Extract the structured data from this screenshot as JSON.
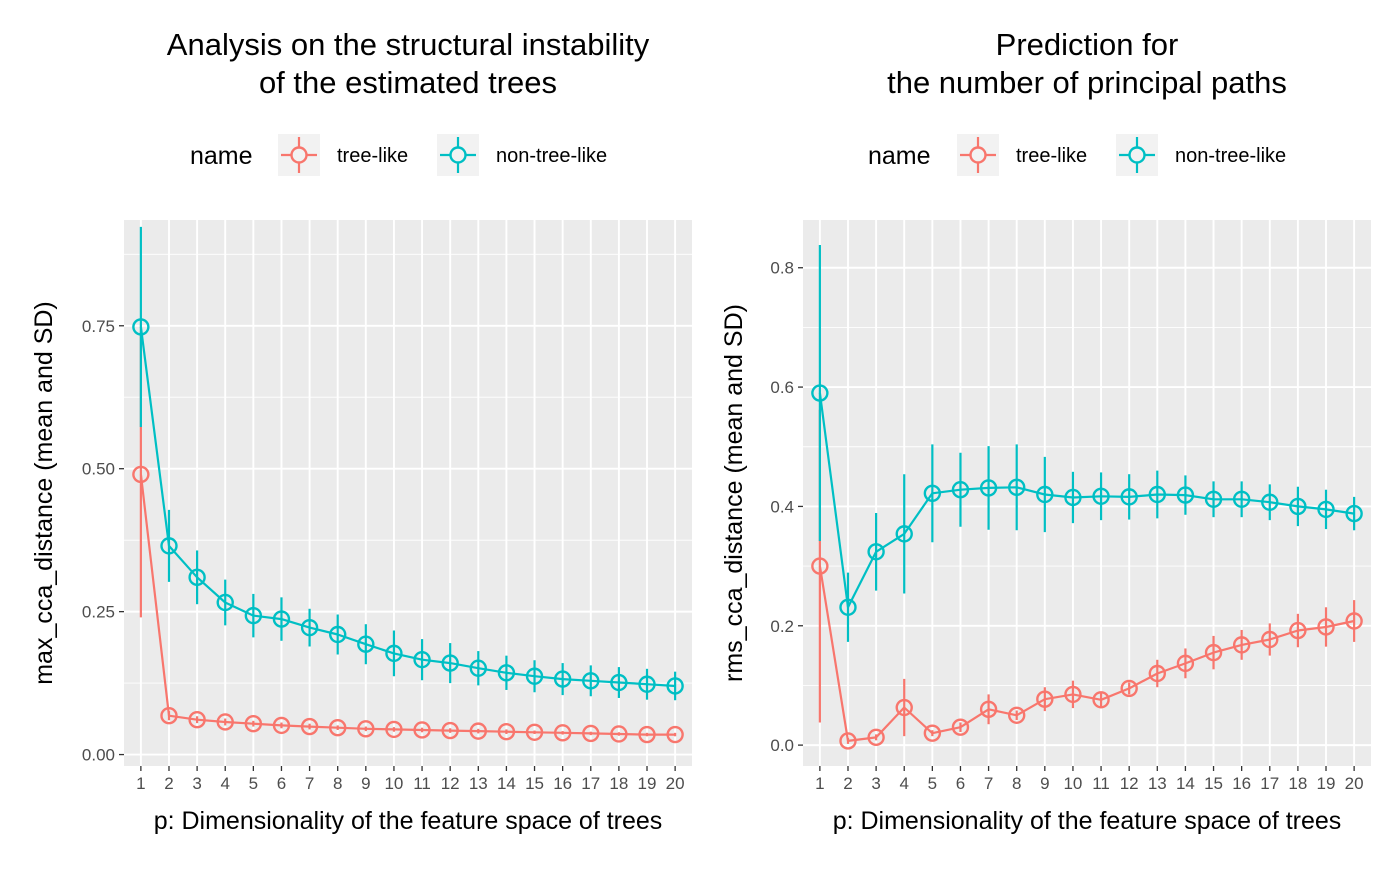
{
  "legend_title": "name",
  "chart_data": [
    {
      "type": "line",
      "title": [
        "Analysis on the structural instability",
        "of the estimated trees"
      ],
      "xlabel": "p: Dimensionality of the feature space of trees",
      "ylabel": "max_cca_distance (mean and SD)",
      "x": [
        1,
        2,
        3,
        4,
        5,
        6,
        7,
        8,
        9,
        10,
        11,
        12,
        13,
        14,
        15,
        16,
        17,
        18,
        19,
        20
      ],
      "ylim": [
        -0.02,
        0.935
      ],
      "yticks": [
        0.0,
        0.25,
        0.5,
        0.75
      ],
      "ytick_labels": [
        "0.00",
        "0.25",
        "0.50",
        "0.75"
      ],
      "grid": true,
      "legend_position": "top",
      "series": [
        {
          "name": "tree-like",
          "color": "#F8766D",
          "values": [
            0.49,
            0.068,
            0.061,
            0.057,
            0.054,
            0.051,
            0.049,
            0.047,
            0.045,
            0.044,
            0.043,
            0.042,
            0.041,
            0.04,
            0.039,
            0.038,
            0.037,
            0.036,
            0.035,
            0.035
          ],
          "sd": [
            0.25,
            0.008,
            0.006,
            0.006,
            0.005,
            0.005,
            0.005,
            0.004,
            0.004,
            0.004,
            0.004,
            0.004,
            0.004,
            0.004,
            0.003,
            0.003,
            0.003,
            0.003,
            0.003,
            0.003
          ]
        },
        {
          "name": "non-tree-like",
          "color": "#00BFC4",
          "values": [
            0.748,
            0.365,
            0.31,
            0.266,
            0.243,
            0.237,
            0.222,
            0.21,
            0.193,
            0.177,
            0.166,
            0.16,
            0.151,
            0.143,
            0.137,
            0.132,
            0.129,
            0.126,
            0.123,
            0.12
          ],
          "sd": [
            0.175,
            0.063,
            0.047,
            0.04,
            0.038,
            0.038,
            0.033,
            0.035,
            0.035,
            0.04,
            0.036,
            0.035,
            0.03,
            0.03,
            0.028,
            0.028,
            0.027,
            0.027,
            0.027,
            0.025
          ]
        }
      ]
    },
    {
      "type": "line",
      "title": [
        "Prediction for",
        "the number of principal paths"
      ],
      "xlabel": "p: Dimensionality of the feature space of trees",
      "ylabel": "rms_cca_distance (mean and SD)",
      "x": [
        1,
        2,
        3,
        4,
        5,
        6,
        7,
        8,
        9,
        10,
        11,
        12,
        13,
        14,
        15,
        16,
        17,
        18,
        19,
        20
      ],
      "ylim": [
        -0.035,
        0.88
      ],
      "yticks": [
        0.0,
        0.2,
        0.4,
        0.6,
        0.8
      ],
      "ytick_labels": [
        "0.0",
        "0.2",
        "0.4",
        "0.6",
        "0.8"
      ],
      "grid": true,
      "legend_position": "top",
      "series": [
        {
          "name": "tree-like",
          "color": "#F8766D",
          "values": [
            0.3,
            0.007,
            0.013,
            0.063,
            0.02,
            0.03,
            0.06,
            0.05,
            0.077,
            0.085,
            0.076,
            0.095,
            0.12,
            0.137,
            0.155,
            0.168,
            0.177,
            0.192,
            0.198,
            0.208
          ],
          "sd": [
            0.262,
            0.005,
            0.005,
            0.048,
            0.005,
            0.008,
            0.025,
            0.008,
            0.02,
            0.023,
            0.013,
            0.01,
            0.023,
            0.025,
            0.028,
            0.025,
            0.027,
            0.028,
            0.033,
            0.035
          ]
        },
        {
          "name": "non-tree-like",
          "color": "#00BFC4",
          "values": [
            0.59,
            0.231,
            0.324,
            0.354,
            0.422,
            0.428,
            0.431,
            0.432,
            0.42,
            0.415,
            0.417,
            0.416,
            0.42,
            0.419,
            0.412,
            0.412,
            0.407,
            0.4,
            0.395,
            0.388
          ],
          "sd": [
            0.248,
            0.058,
            0.065,
            0.1,
            0.082,
            0.062,
            0.07,
            0.072,
            0.063,
            0.043,
            0.04,
            0.038,
            0.04,
            0.033,
            0.03,
            0.03,
            0.03,
            0.033,
            0.033,
            0.028
          ]
        }
      ]
    }
  ]
}
